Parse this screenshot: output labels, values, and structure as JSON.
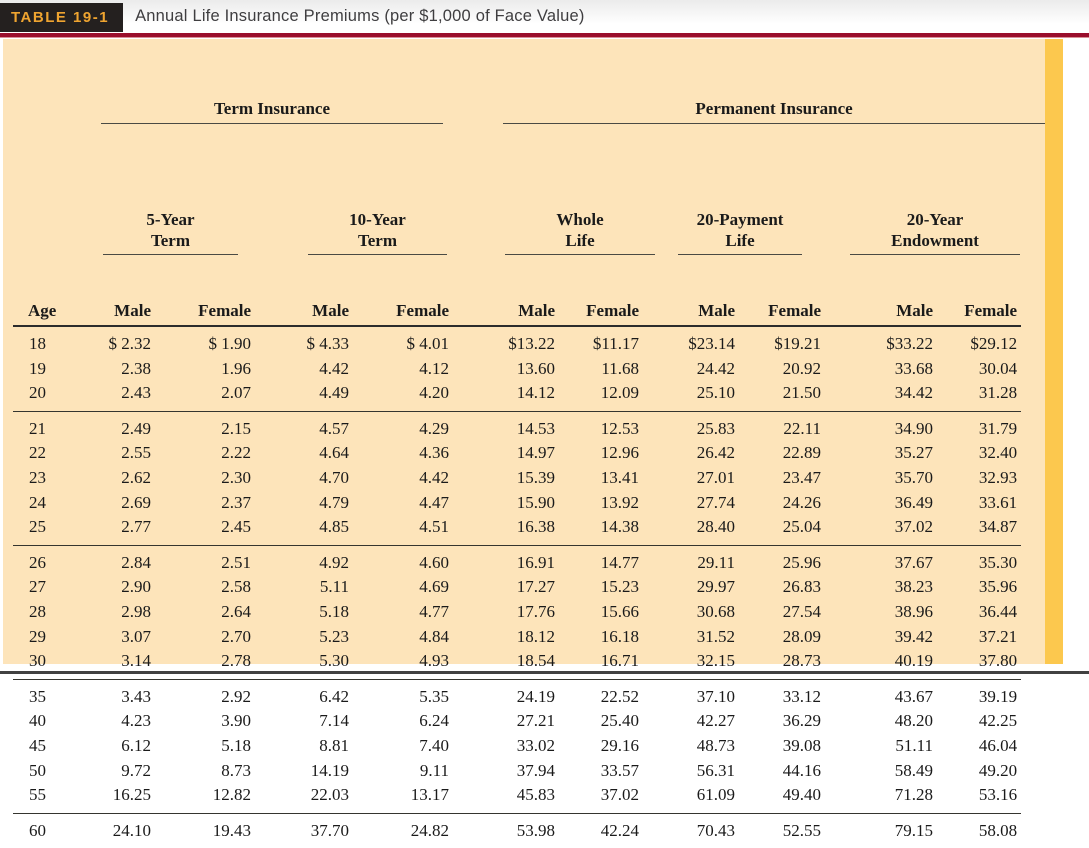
{
  "header": {
    "table_label": "TABLE 19-1",
    "title": "Annual Life Insurance Premiums (per $1,000 of Face Value)"
  },
  "colors": {
    "maroon_rule": "#9a0e2c",
    "panel_bg": "#fde4ba",
    "gold_bar": "#fcc84e",
    "badge_bg": "#24201f",
    "badge_text": "#efa430"
  },
  "table": {
    "group_headers": [
      "Term Insurance",
      "Permanent Insurance"
    ],
    "subgroups": [
      {
        "line1": "5-Year",
        "line2": "Term"
      },
      {
        "line1": "10-Year",
        "line2": "Term"
      },
      {
        "line1": "Whole",
        "line2": "Life"
      },
      {
        "line1": "20-Payment",
        "line2": "Life"
      },
      {
        "line1": "20-Year",
        "line2": "Endowment"
      }
    ],
    "column_headers": [
      "Age",
      "Male",
      "Female",
      "Male",
      "Female",
      "Male",
      "Female",
      "Male",
      "Female",
      "Male",
      "Female"
    ],
    "row_groups": [
      {
        "rows": [
          [
            "18",
            "$ 2.32",
            "$ 1.90",
            "$ 4.33",
            "$ 4.01",
            "$13.22",
            "$11.17",
            "$23.14",
            "$19.21",
            "$33.22",
            "$29.12"
          ],
          [
            "19",
            "2.38",
            "1.96",
            "4.42",
            "4.12",
            "13.60",
            "11.68",
            "24.42",
            "20.92",
            "33.68",
            "30.04"
          ],
          [
            "20",
            "2.43",
            "2.07",
            "4.49",
            "4.20",
            "14.12",
            "12.09",
            "25.10",
            "21.50",
            "34.42",
            "31.28"
          ]
        ]
      },
      {
        "rows": [
          [
            "21",
            "2.49",
            "2.15",
            "4.57",
            "4.29",
            "14.53",
            "12.53",
            "25.83",
            "22.11",
            "34.90",
            "31.79"
          ],
          [
            "22",
            "2.55",
            "2.22",
            "4.64",
            "4.36",
            "14.97",
            "12.96",
            "26.42",
            "22.89",
            "35.27",
            "32.40"
          ],
          [
            "23",
            "2.62",
            "2.30",
            "4.70",
            "4.42",
            "15.39",
            "13.41",
            "27.01",
            "23.47",
            "35.70",
            "32.93"
          ],
          [
            "24",
            "2.69",
            "2.37",
            "4.79",
            "4.47",
            "15.90",
            "13.92",
            "27.74",
            "24.26",
            "36.49",
            "33.61"
          ],
          [
            "25",
            "2.77",
            "2.45",
            "4.85",
            "4.51",
            "16.38",
            "14.38",
            "28.40",
            "25.04",
            "37.02",
            "34.87"
          ]
        ]
      },
      {
        "rows": [
          [
            "26",
            "2.84",
            "2.51",
            "4.92",
            "4.60",
            "16.91",
            "14.77",
            "29.11",
            "25.96",
            "37.67",
            "35.30"
          ],
          [
            "27",
            "2.90",
            "2.58",
            "5.11",
            "4.69",
            "17.27",
            "15.23",
            "29.97",
            "26.83",
            "38.23",
            "35.96"
          ],
          [
            "28",
            "2.98",
            "2.64",
            "5.18",
            "4.77",
            "17.76",
            "15.66",
            "30.68",
            "27.54",
            "38.96",
            "36.44"
          ],
          [
            "29",
            "3.07",
            "2.70",
            "5.23",
            "4.84",
            "18.12",
            "16.18",
            "31.52",
            "28.09",
            "39.42",
            "37.21"
          ],
          [
            "30",
            "3.14",
            "2.78",
            "5.30",
            "4.93",
            "18.54",
            "16.71",
            "32.15",
            "28.73",
            "40.19",
            "37.80"
          ]
        ]
      },
      {
        "rows": [
          [
            "35",
            "3.43",
            "2.92",
            "6.42",
            "5.35",
            "24.19",
            "22.52",
            "37.10",
            "33.12",
            "43.67",
            "39.19"
          ],
          [
            "40",
            "4.23",
            "3.90",
            "7.14",
            "6.24",
            "27.21",
            "25.40",
            "42.27",
            "36.29",
            "48.20",
            "42.25"
          ],
          [
            "45",
            "6.12",
            "5.18",
            "8.81",
            "7.40",
            "33.02",
            "29.16",
            "48.73",
            "39.08",
            "51.11",
            "46.04"
          ],
          [
            "50",
            "9.72",
            "8.73",
            "14.19",
            "9.11",
            "37.94",
            "33.57",
            "56.31",
            "44.16",
            "58.49",
            "49.20"
          ],
          [
            "55",
            "16.25",
            "12.82",
            "22.03",
            "13.17",
            "45.83",
            "37.02",
            "61.09",
            "49.40",
            "71.28",
            "53.16"
          ]
        ]
      },
      {
        "rows": [
          [
            "60",
            "24.10",
            "19.43",
            "37.70",
            "24.82",
            "53.98",
            "42.24",
            "70.43",
            "52.55",
            "79.15",
            "58.08"
          ]
        ]
      }
    ]
  }
}
